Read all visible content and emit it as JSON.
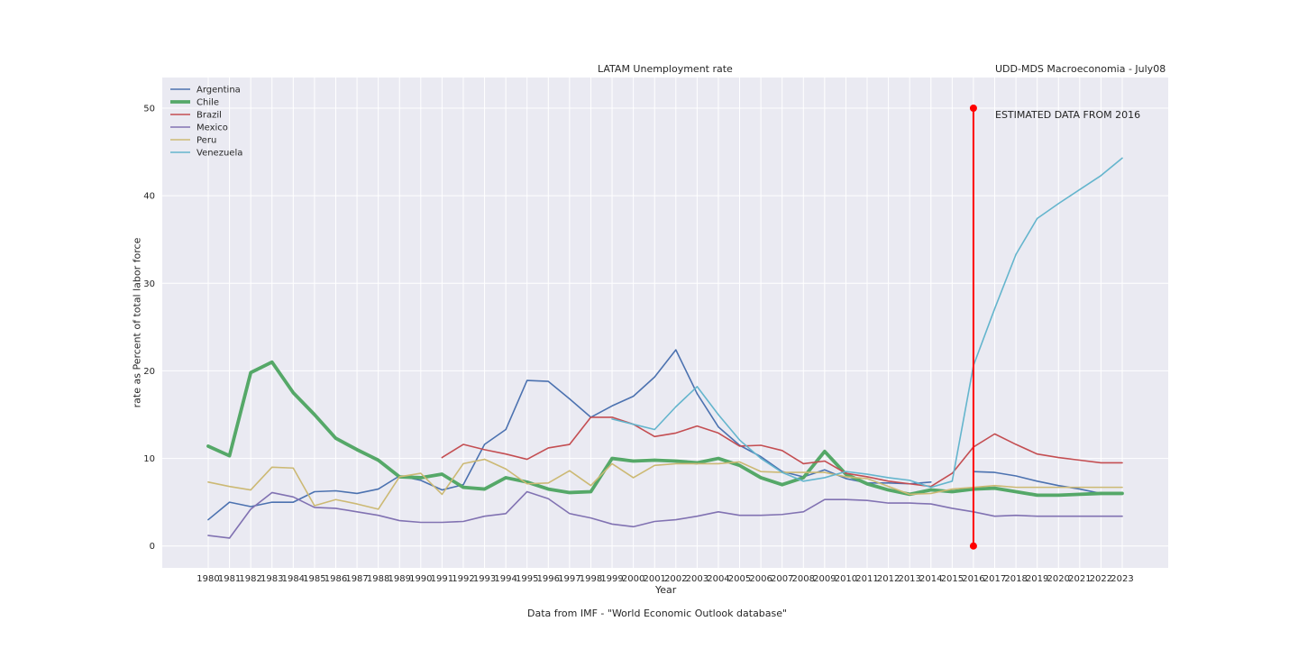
{
  "chart_data": {
    "type": "line",
    "title": "LATAM Unemployment rate",
    "subtitle_right": "UDD-MDS Macroeconomia - July08",
    "xlabel": "Year",
    "ylabel": "rate as Percent of total labor force",
    "footer": "Data from IMF - \"World Economic Outlook database\"",
    "annotation": "ESTIMATED DATA FROM 2016",
    "ylim": [
      -2.5,
      53.5
    ],
    "yticks": [
      0,
      10,
      20,
      30,
      40,
      50
    ],
    "grid": true,
    "legend_position": "top-left",
    "x": [
      "1980",
      "1981",
      "1982",
      "1983",
      "1984",
      "1985",
      "1986",
      "1987",
      "1988",
      "1989",
      "1990",
      "1991",
      "1992",
      "1993",
      "1994",
      "1995",
      "1996",
      "1997",
      "1998",
      "1999",
      "2000",
      "2001",
      "2002",
      "2003",
      "2004",
      "2005",
      "2006",
      "2007",
      "2008",
      "2009",
      "2010",
      "2011",
      "2012",
      "2013",
      "2014",
      "2015",
      "2016",
      "2017",
      "2018",
      "2019",
      "2020",
      "2021",
      "2022",
      "2023"
    ],
    "marker_line": {
      "x": "2016",
      "y_from": 0,
      "y_to": 50,
      "color": "#ff0000"
    },
    "series": [
      {
        "name": "Argentina",
        "color": "#4c72b0",
        "width": 1.6,
        "values": [
          3.0,
          5.0,
          4.5,
          5.0,
          5.0,
          6.2,
          6.3,
          6.0,
          6.5,
          8.0,
          7.5,
          6.4,
          7.0,
          11.6,
          13.3,
          18.9,
          18.8,
          16.8,
          14.7,
          16.0,
          17.1,
          19.3,
          22.4,
          17.4,
          13.6,
          11.5,
          10.2,
          8.5,
          7.9,
          8.7,
          7.7,
          7.2,
          7.2,
          7.1,
          7.3,
          null,
          8.5,
          8.4,
          8.0,
          7.4,
          6.9,
          6.5,
          6.0,
          6.0
        ]
      },
      {
        "name": "Chile",
        "color": "#55a868",
        "width": 3.8,
        "values": [
          11.4,
          10.3,
          19.8,
          21.0,
          17.5,
          15.0,
          12.3,
          11.0,
          9.8,
          7.9,
          7.8,
          8.2,
          6.7,
          6.5,
          7.8,
          7.3,
          6.5,
          6.1,
          6.2,
          10.0,
          9.7,
          9.8,
          9.7,
          9.5,
          10.0,
          9.2,
          7.8,
          7.0,
          7.8,
          10.8,
          8.2,
          7.1,
          6.4,
          5.9,
          6.4,
          6.2,
          6.5,
          6.6,
          6.2,
          5.8,
          5.8,
          5.9,
          6.0,
          6.0
        ]
      },
      {
        "name": "Brazil",
        "color": "#c44e52",
        "width": 1.6,
        "values": [
          null,
          null,
          null,
          null,
          null,
          null,
          null,
          null,
          null,
          null,
          null,
          10.1,
          11.6,
          11.0,
          10.5,
          9.9,
          11.2,
          11.6,
          14.7,
          14.7,
          13.9,
          12.5,
          12.9,
          13.7,
          12.9,
          11.4,
          11.5,
          10.9,
          9.4,
          9.7,
          8.3,
          7.9,
          7.4,
          7.1,
          6.8,
          8.3,
          11.3,
          12.8,
          11.6,
          10.5,
          10.1,
          9.8,
          9.5,
          9.5
        ]
      },
      {
        "name": "Mexico",
        "color": "#8172b2",
        "width": 1.6,
        "values": [
          1.2,
          0.9,
          4.2,
          6.1,
          5.6,
          4.4,
          4.3,
          3.9,
          3.5,
          2.9,
          2.7,
          2.7,
          2.8,
          3.4,
          3.7,
          6.2,
          5.4,
          3.7,
          3.2,
          2.5,
          2.2,
          2.8,
          3.0,
          3.4,
          3.9,
          3.5,
          3.5,
          3.6,
          3.9,
          5.3,
          5.3,
          5.2,
          4.9,
          4.9,
          4.8,
          4.3,
          3.9,
          3.4,
          3.5,
          3.4,
          3.4,
          3.4,
          3.4,
          3.4
        ]
      },
      {
        "name": "Peru",
        "color": "#ccb974",
        "width": 1.6,
        "values": [
          7.3,
          6.8,
          6.4,
          9.0,
          8.9,
          4.6,
          5.3,
          4.8,
          4.2,
          7.9,
          8.3,
          5.9,
          9.4,
          9.9,
          8.8,
          7.1,
          7.2,
          8.6,
          6.9,
          9.4,
          7.8,
          9.2,
          9.4,
          9.4,
          9.4,
          9.6,
          8.5,
          8.4,
          8.4,
          8.4,
          7.9,
          7.7,
          6.8,
          5.9,
          6.0,
          6.5,
          6.7,
          6.9,
          6.7,
          6.7,
          6.7,
          6.7,
          6.7,
          6.7
        ]
      },
      {
        "name": "Venezuela",
        "color": "#64b5cd",
        "width": 1.6,
        "values": [
          null,
          null,
          null,
          null,
          null,
          null,
          null,
          null,
          null,
          null,
          null,
          null,
          null,
          null,
          null,
          null,
          null,
          null,
          null,
          14.5,
          13.9,
          13.3,
          15.9,
          18.2,
          15.0,
          12.1,
          10.0,
          8.4,
          7.4,
          7.8,
          8.5,
          8.2,
          7.8,
          7.5,
          6.7,
          7.4,
          20.6,
          27.1,
          33.3,
          37.4,
          39.1,
          40.7,
          42.3,
          44.3
        ]
      }
    ]
  }
}
